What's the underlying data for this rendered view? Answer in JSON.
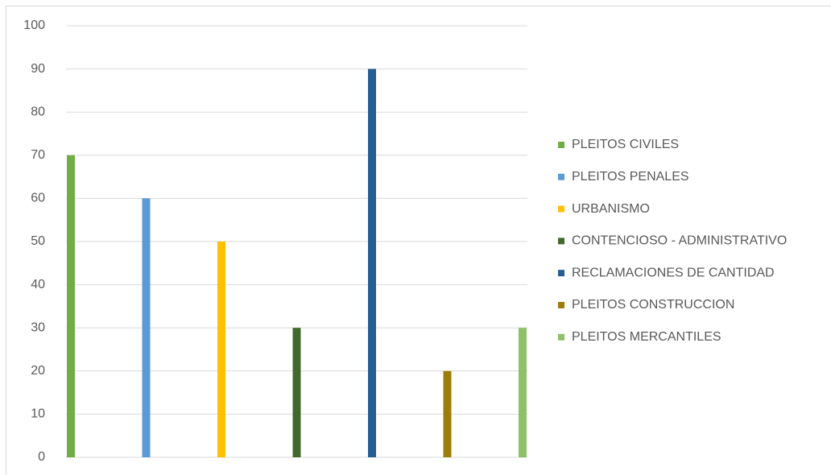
{
  "chart_data": {
    "type": "bar",
    "categories": [
      null
    ],
    "series": [
      {
        "name": "PLEITOS CIVILES",
        "color": "#70ad47",
        "values": [
          70
        ]
      },
      {
        "name": "PLEITOS PENALES",
        "color": "#5b9bd5",
        "values": [
          60
        ]
      },
      {
        "name": "URBANISMO",
        "color": "#ffc000",
        "values": [
          50
        ]
      },
      {
        "name": "CONTENCIOSO - ADMINISTRATIVO",
        "color": "#43682b",
        "values": [
          30
        ]
      },
      {
        "name": "RECLAMACIONES DE CANTIDAD",
        "color": "#255e91",
        "values": [
          90
        ]
      },
      {
        "name": "PLEITOS CONSTRUCCION",
        "color": "#9e7c0c",
        "values": [
          20
        ]
      },
      {
        "name": "PLEITOS MERCANTILES",
        "color": "#8cc168",
        "values": [
          30
        ]
      }
    ],
    "ylim": [
      0,
      100
    ],
    "yticks": [
      0,
      10,
      20,
      30,
      40,
      50,
      60,
      70,
      80,
      90,
      100
    ],
    "grid": true,
    "legend": "right"
  }
}
